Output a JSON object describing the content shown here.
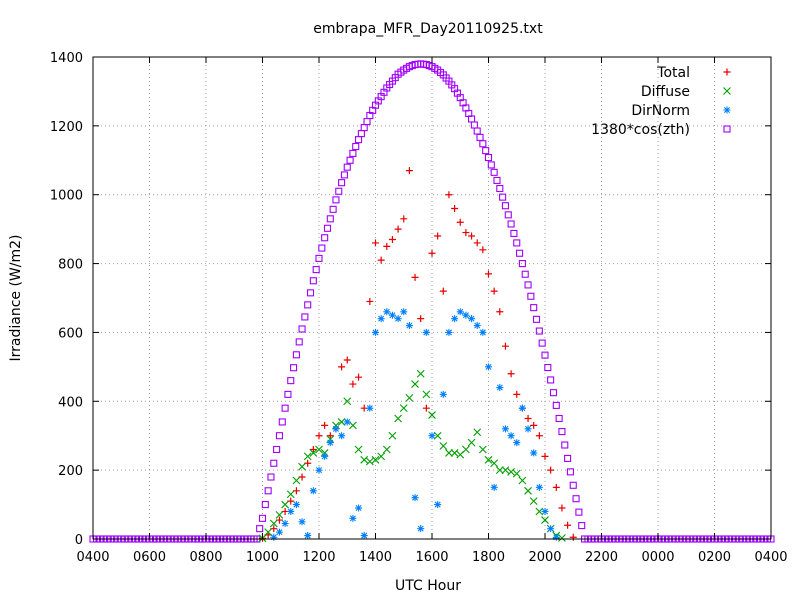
{
  "chart_data": {
    "type": "scatter",
    "title": "embrapa_MFR_Day20110925.txt",
    "xlabel": "UTC Hour",
    "ylabel": "Irradiance (W/m2)",
    "xlim": [
      4,
      28
    ],
    "ylim": [
      0,
      1400
    ],
    "grid": true,
    "legend_position": "top-right",
    "x_ticks": [
      {
        "value": 4,
        "label": "0400"
      },
      {
        "value": 6,
        "label": "0600"
      },
      {
        "value": 8,
        "label": "0800"
      },
      {
        "value": 10,
        "label": "1000"
      },
      {
        "value": 12,
        "label": "1200"
      },
      {
        "value": 14,
        "label": "1400"
      },
      {
        "value": 16,
        "label": "1600"
      },
      {
        "value": 18,
        "label": "1800"
      },
      {
        "value": 20,
        "label": "2000"
      },
      {
        "value": 22,
        "label": "2200"
      },
      {
        "value": 24,
        "label": "0000"
      },
      {
        "value": 26,
        "label": "0200"
      },
      {
        "value": 28,
        "label": "0400"
      }
    ],
    "y_ticks": [
      0,
      200,
      400,
      600,
      800,
      1000,
      1200,
      1400
    ],
    "series": [
      {
        "name": "Total",
        "marker": "plus",
        "color": "#e60000",
        "points": [
          [
            10.0,
            2
          ],
          [
            10.2,
            12
          ],
          [
            10.4,
            30
          ],
          [
            10.6,
            55
          ],
          [
            10.8,
            80
          ],
          [
            11.0,
            110
          ],
          [
            11.2,
            140
          ],
          [
            11.4,
            180
          ],
          [
            11.6,
            220
          ],
          [
            11.8,
            260
          ],
          [
            12.0,
            300
          ],
          [
            12.2,
            330
          ],
          [
            12.4,
            300
          ],
          [
            12.6,
            320
          ],
          [
            12.8,
            500
          ],
          [
            13.0,
            520
          ],
          [
            13.2,
            450
          ],
          [
            13.4,
            470
          ],
          [
            13.6,
            380
          ],
          [
            13.8,
            690
          ],
          [
            14.0,
            860
          ],
          [
            14.2,
            810
          ],
          [
            14.4,
            850
          ],
          [
            14.6,
            870
          ],
          [
            14.8,
            900
          ],
          [
            15.0,
            930
          ],
          [
            15.2,
            1070
          ],
          [
            15.4,
            760
          ],
          [
            15.6,
            640
          ],
          [
            15.8,
            380
          ],
          [
            16.0,
            830
          ],
          [
            16.2,
            880
          ],
          [
            16.4,
            720
          ],
          [
            16.6,
            1000
          ],
          [
            16.8,
            960
          ],
          [
            17.0,
            920
          ],
          [
            17.2,
            890
          ],
          [
            17.4,
            880
          ],
          [
            17.6,
            860
          ],
          [
            17.8,
            840
          ],
          [
            18.0,
            770
          ],
          [
            18.2,
            720
          ],
          [
            18.4,
            660
          ],
          [
            18.6,
            560
          ],
          [
            18.8,
            480
          ],
          [
            19.0,
            420
          ],
          [
            19.2,
            380
          ],
          [
            19.4,
            350
          ],
          [
            19.6,
            330
          ],
          [
            19.8,
            300
          ],
          [
            20.0,
            240
          ],
          [
            20.2,
            200
          ],
          [
            20.4,
            150
          ],
          [
            20.6,
            90
          ],
          [
            20.8,
            40
          ],
          [
            21.0,
            5
          ]
        ]
      },
      {
        "name": "Diffuse",
        "marker": "cross",
        "color": "#00a000",
        "points": [
          [
            10.0,
            2
          ],
          [
            10.2,
            20
          ],
          [
            10.4,
            45
          ],
          [
            10.6,
            70
          ],
          [
            10.8,
            100
          ],
          [
            11.0,
            130
          ],
          [
            11.2,
            170
          ],
          [
            11.4,
            210
          ],
          [
            11.6,
            240
          ],
          [
            11.8,
            250
          ],
          [
            12.0,
            260
          ],
          [
            12.2,
            250
          ],
          [
            12.4,
            290
          ],
          [
            12.6,
            330
          ],
          [
            12.8,
            340
          ],
          [
            13.0,
            400
          ],
          [
            13.2,
            330
          ],
          [
            13.4,
            260
          ],
          [
            13.6,
            230
          ],
          [
            13.8,
            225
          ],
          [
            14.0,
            230
          ],
          [
            14.2,
            240
          ],
          [
            14.4,
            260
          ],
          [
            14.6,
            300
          ],
          [
            14.8,
            350
          ],
          [
            15.0,
            380
          ],
          [
            15.2,
            410
          ],
          [
            15.4,
            450
          ],
          [
            15.6,
            480
          ],
          [
            15.8,
            420
          ],
          [
            16.0,
            360
          ],
          [
            16.2,
            300
          ],
          [
            16.4,
            270
          ],
          [
            16.6,
            250
          ],
          [
            16.8,
            250
          ],
          [
            17.0,
            245
          ],
          [
            17.2,
            260
          ],
          [
            17.4,
            280
          ],
          [
            17.6,
            310
          ],
          [
            17.8,
            260
          ],
          [
            18.0,
            230
          ],
          [
            18.2,
            220
          ],
          [
            18.4,
            200
          ],
          [
            18.6,
            200
          ],
          [
            18.8,
            195
          ],
          [
            19.0,
            190
          ],
          [
            19.2,
            170
          ],
          [
            19.4,
            140
          ],
          [
            19.6,
            110
          ],
          [
            19.8,
            80
          ],
          [
            20.0,
            55
          ],
          [
            20.2,
            30
          ],
          [
            20.4,
            10
          ],
          [
            20.6,
            3
          ]
        ]
      },
      {
        "name": "DirNorm",
        "marker": "star",
        "color": "#0080ff",
        "points": [
          [
            10.4,
            5
          ],
          [
            10.6,
            20
          ],
          [
            10.8,
            45
          ],
          [
            11.0,
            80
          ],
          [
            11.2,
            100
          ],
          [
            11.4,
            50
          ],
          [
            11.6,
            10
          ],
          [
            11.8,
            140
          ],
          [
            12.0,
            200
          ],
          [
            12.2,
            240
          ],
          [
            12.4,
            280
          ],
          [
            12.6,
            320
          ],
          [
            12.8,
            300
          ],
          [
            13.0,
            340
          ],
          [
            13.2,
            60
          ],
          [
            13.4,
            90
          ],
          [
            13.6,
            10
          ],
          [
            13.8,
            380
          ],
          [
            14.0,
            600
          ],
          [
            14.2,
            640
          ],
          [
            14.4,
            660
          ],
          [
            14.6,
            650
          ],
          [
            14.8,
            640
          ],
          [
            15.0,
            660
          ],
          [
            15.2,
            620
          ],
          [
            15.4,
            120
          ],
          [
            15.6,
            30
          ],
          [
            15.8,
            600
          ],
          [
            16.0,
            300
          ],
          [
            16.2,
            100
          ],
          [
            16.4,
            420
          ],
          [
            16.6,
            600
          ],
          [
            16.8,
            640
          ],
          [
            17.0,
            660
          ],
          [
            17.2,
            650
          ],
          [
            17.4,
            640
          ],
          [
            17.6,
            620
          ],
          [
            17.8,
            600
          ],
          [
            18.0,
            500
          ],
          [
            18.2,
            150
          ],
          [
            18.4,
            440
          ],
          [
            18.6,
            320
          ],
          [
            18.8,
            300
          ],
          [
            19.0,
            280
          ],
          [
            19.2,
            380
          ],
          [
            19.4,
            320
          ],
          [
            19.6,
            250
          ],
          [
            19.8,
            150
          ],
          [
            20.0,
            80
          ],
          [
            20.2,
            30
          ],
          [
            20.4,
            5
          ]
        ]
      },
      {
        "name": "1380*cos(zth)",
        "marker": "square",
        "color": "#a000ff",
        "points": [
          [
            4.0,
            0
          ],
          [
            6.0,
            0
          ],
          [
            8.0,
            0
          ],
          [
            9.6,
            0
          ],
          [
            9.8,
            0
          ],
          [
            10.0,
            60
          ],
          [
            10.2,
            140
          ],
          [
            10.4,
            220
          ],
          [
            10.6,
            300
          ],
          [
            10.8,
            380
          ],
          [
            11.0,
            460
          ],
          [
            11.2,
            535
          ],
          [
            11.4,
            610
          ],
          [
            11.6,
            680
          ],
          [
            11.8,
            750
          ],
          [
            12.0,
            815
          ],
          [
            12.2,
            875
          ],
          [
            12.4,
            930
          ],
          [
            12.6,
            985
          ],
          [
            12.8,
            1035
          ],
          [
            13.0,
            1080
          ],
          [
            13.2,
            1120
          ],
          [
            13.4,
            1160
          ],
          [
            13.6,
            1195
          ],
          [
            13.8,
            1230
          ],
          [
            14.0,
            1260
          ],
          [
            14.2,
            1285
          ],
          [
            14.4,
            1310
          ],
          [
            14.6,
            1330
          ],
          [
            14.8,
            1350
          ],
          [
            15.0,
            1362
          ],
          [
            15.2,
            1372
          ],
          [
            15.4,
            1378
          ],
          [
            15.6,
            1380
          ],
          [
            15.8,
            1378
          ],
          [
            16.0,
            1372
          ],
          [
            16.2,
            1362
          ],
          [
            16.4,
            1348
          ],
          [
            16.6,
            1330
          ],
          [
            16.8,
            1308
          ],
          [
            17.0,
            1282
          ],
          [
            17.2,
            1252
          ],
          [
            17.4,
            1220
          ],
          [
            17.6,
            1185
          ],
          [
            17.8,
            1148
          ],
          [
            18.0,
            1108
          ],
          [
            18.2,
            1065
          ],
          [
            18.4,
            1018
          ],
          [
            18.6,
            968
          ],
          [
            18.8,
            915
          ],
          [
            19.0,
            860
          ],
          [
            19.2,
            800
          ],
          [
            19.4,
            738
          ],
          [
            19.6,
            672
          ],
          [
            19.8,
            604
          ],
          [
            20.0,
            534
          ],
          [
            20.2,
            462
          ],
          [
            20.4,
            388
          ],
          [
            20.6,
            312
          ],
          [
            20.8,
            234
          ],
          [
            21.0,
            156
          ],
          [
            21.2,
            78
          ],
          [
            21.4,
            0
          ],
          [
            22.0,
            0
          ],
          [
            24.0,
            0
          ],
          [
            26.0,
            0
          ],
          [
            28.0,
            0
          ]
        ]
      }
    ]
  }
}
